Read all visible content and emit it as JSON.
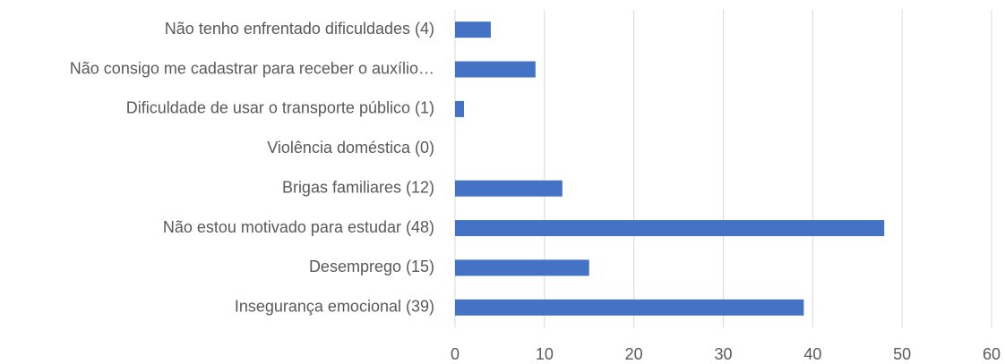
{
  "chart_data": {
    "type": "bar",
    "orientation": "horizontal",
    "categories": [
      "Não tenho enfrentado dificuldades (4)",
      "Não consigo me cadastrar para receber  o auxílio…",
      "Dificuldade de usar o transporte público (1)",
      "Violência doméstica (0)",
      "Brigas familiares (12)",
      "Não estou motivado para estudar (48)",
      "Desemprego (15)",
      "Insegurança emocional (39)"
    ],
    "values": [
      4,
      9,
      1,
      0,
      12,
      48,
      15,
      39
    ],
    "color": "#4472c4",
    "xlim": [
      0,
      60
    ],
    "xticks": [
      0,
      10,
      20,
      30,
      40,
      50,
      60
    ],
    "grid": true
  }
}
